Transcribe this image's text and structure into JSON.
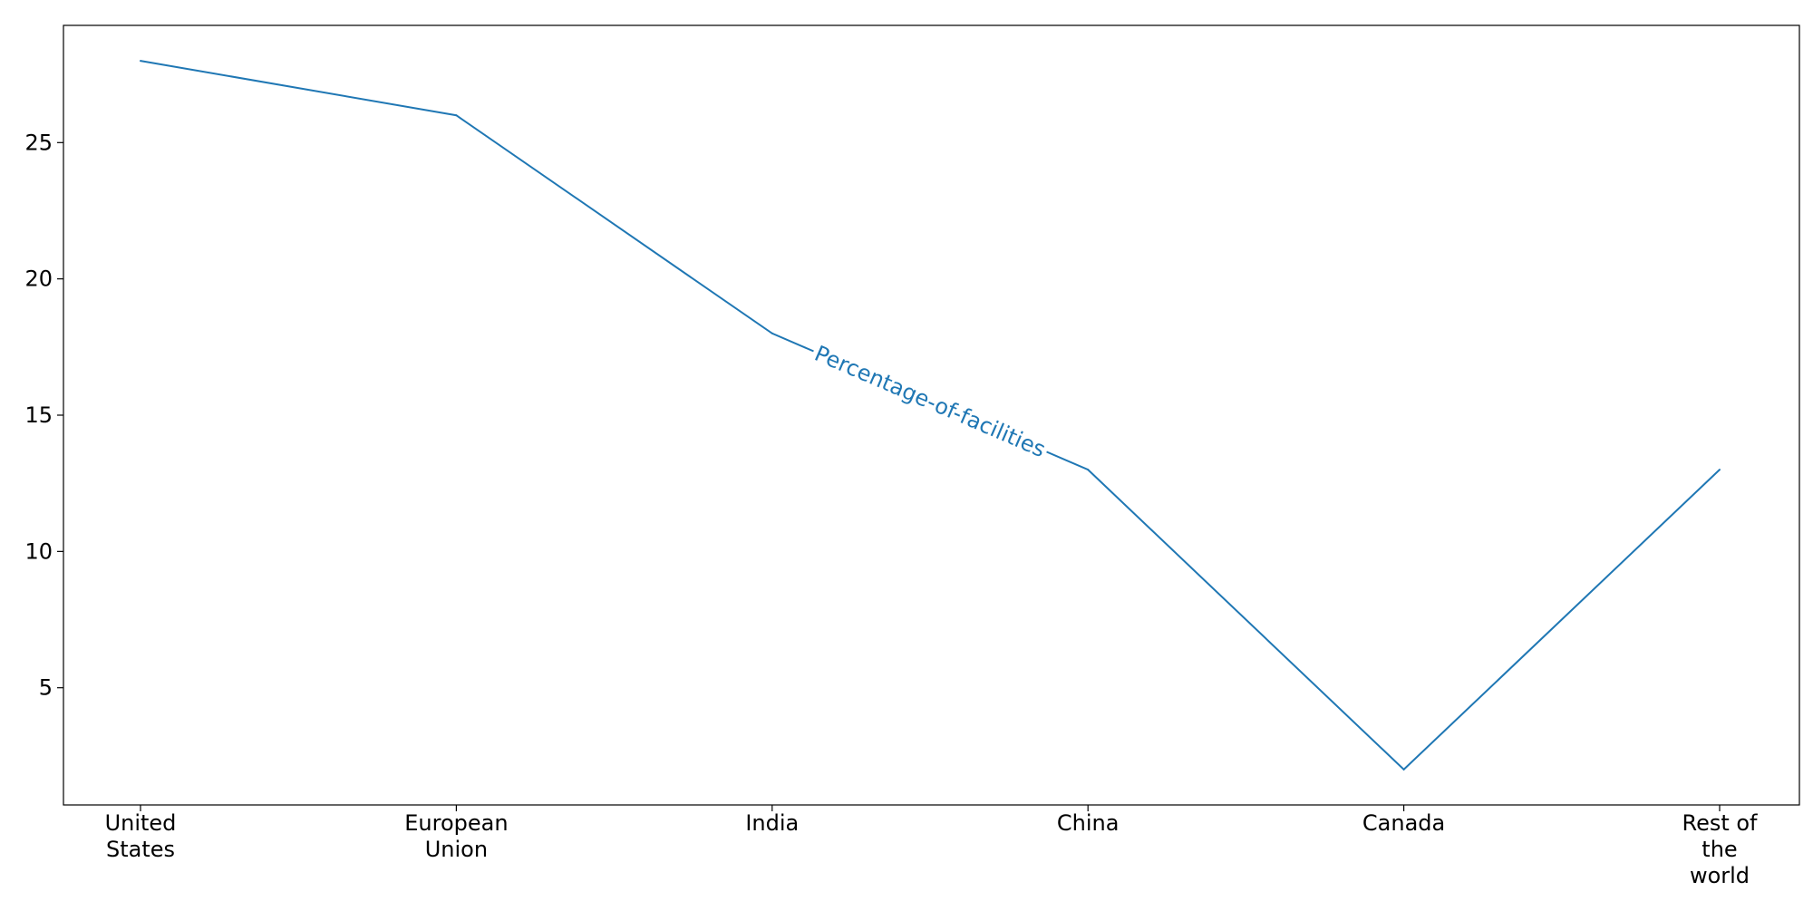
{
  "chart_data": {
    "type": "line",
    "categories": [
      [
        "United",
        "States"
      ],
      [
        "European",
        "Union"
      ],
      [
        "India"
      ],
      [
        "China"
      ],
      [
        "Canada"
      ],
      [
        "Rest of",
        "the",
        "world"
      ]
    ],
    "series": [
      {
        "name": "Percentage-of-facilities",
        "values": [
          28,
          26,
          18,
          13,
          2,
          13
        ],
        "color": "#1f77b4"
      }
    ],
    "ylim": [
      0.7,
      29.3
    ],
    "yticks": [
      5,
      10,
      15,
      20,
      25
    ],
    "grid": false,
    "legend": "none",
    "inline_label": {
      "text": "Percentage-of-facilities",
      "x": 2.5,
      "y": 15.5
    }
  }
}
